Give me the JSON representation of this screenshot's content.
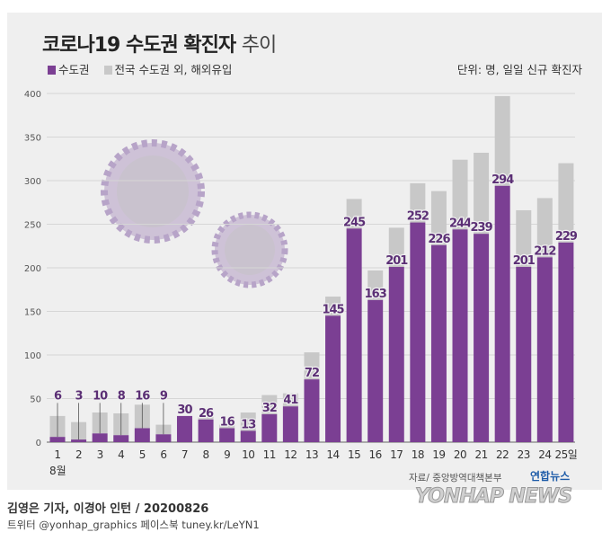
{
  "header": {
    "title_bold": "코로나19 수도권 확진자",
    "title_light": "추이",
    "unit": "단위: 명, 일일 신규 확진자"
  },
  "legend": [
    {
      "label": "수도권",
      "color": "#7b3f93"
    },
    {
      "label": "전국 수도권 외, 해외유입",
      "color": "#c8c8c8"
    }
  ],
  "footer": {
    "source": "자료/ 중앙방역대책본부",
    "brand": "연합뉴스",
    "brand_en": "YONHAP NEWS",
    "byline": "김영은 기자, 이경아 인턴 / 20200826",
    "social": "트위터 @yonhap_graphics  페이스북 tuney.kr/LeYN1"
  },
  "chart_data": {
    "type": "bar",
    "stacked": true,
    "categories": [
      "1",
      "2",
      "3",
      "4",
      "5",
      "6",
      "7",
      "8",
      "9",
      "10",
      "11",
      "12",
      "13",
      "14",
      "15",
      "16",
      "17",
      "18",
      "19",
      "20",
      "21",
      "22",
      "23",
      "24",
      "25일"
    ],
    "month_label": "8월",
    "series": [
      {
        "name": "수도권",
        "color": "#7b3f93",
        "values": [
          6,
          3,
          10,
          8,
          16,
          9,
          30,
          26,
          16,
          13,
          32,
          41,
          72,
          145,
          245,
          163,
          201,
          252,
          226,
          244,
          239,
          294,
          201,
          212,
          229
        ]
      },
      {
        "name": "전국 수도권 외, 해외유입",
        "color": "#c8c8c8",
        "values": [
          24,
          20,
          24,
          25,
          27,
          11,
          0,
          3,
          4,
          21,
          22,
          15,
          31,
          22,
          34,
          34,
          45,
          45,
          62,
          80,
          93,
          103,
          65,
          68,
          91
        ]
      }
    ],
    "totals": [
      30,
      23,
      34,
      33,
      43,
      20,
      30,
      29,
      20,
      34,
      54,
      56,
      103,
      167,
      279,
      197,
      246,
      297,
      288,
      324,
      332,
      397,
      266,
      280,
      320
    ],
    "ylim": [
      0,
      400
    ],
    "yticks": [
      0,
      50,
      100,
      150,
      200,
      250,
      300,
      350,
      400
    ],
    "grid": true
  }
}
